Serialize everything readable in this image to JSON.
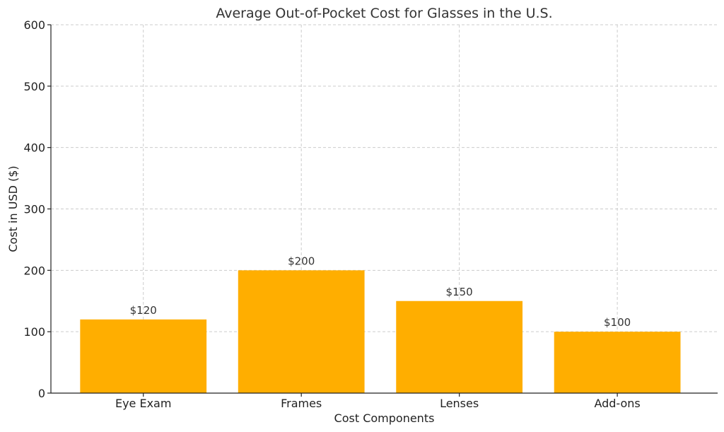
{
  "chart_data": {
    "type": "bar",
    "title": "Average Out-of-Pocket Cost for Glasses in the U.S.",
    "xlabel": "Cost Components",
    "ylabel": "Cost in USD ($)",
    "categories": [
      "Eye Exam",
      "Frames",
      "Lenses",
      "Add-ons"
    ],
    "values": [
      120,
      200,
      150,
      100
    ],
    "data_labels": [
      "$120",
      "$200",
      "$150",
      "$100"
    ],
    "ylim": [
      0,
      600
    ],
    "yticks": [
      0,
      100,
      200,
      300,
      400,
      500,
      600
    ],
    "ytick_labels": [
      "0",
      "100",
      "200",
      "300",
      "400",
      "500",
      "600"
    ],
    "grid": true,
    "bar_color": "#ffae00"
  }
}
